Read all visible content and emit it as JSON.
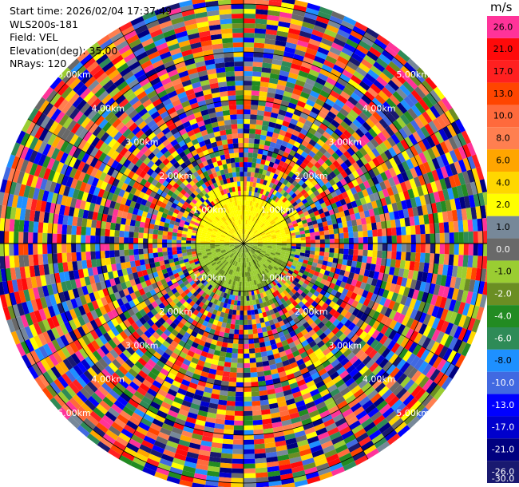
{
  "header": {
    "start_time": "Start time: 2026/02/04 17:37:49",
    "station": "WLS200s-181",
    "field": "Field: VEL",
    "elevation": "Elevation(deg): 35.00",
    "nrays": "NRays: 120"
  },
  "colorbar": {
    "unit": "m/s",
    "bins": [
      {
        "label": "26.0",
        "color": "#ff3399"
      },
      {
        "label": "21.0",
        "color": "#ff0a0a"
      },
      {
        "label": "17.0",
        "color": "#ff2020"
      },
      {
        "label": "13.0",
        "color": "#ff4500"
      },
      {
        "label": "10.0",
        "color": "#ff6a3c"
      },
      {
        "label": "8.0",
        "color": "#ff7f50"
      },
      {
        "label": "6.0",
        "color": "#ffa500"
      },
      {
        "label": "4.0",
        "color": "#ffd700"
      },
      {
        "label": "2.0",
        "color": "#ffff00"
      },
      {
        "label": "1.0",
        "color": "#778899"
      },
      {
        "label": "0.0",
        "color": "#696969"
      },
      {
        "label": "-1.0",
        "color": "#9acd32"
      },
      {
        "label": "-2.0",
        "color": "#6b8e23"
      },
      {
        "label": "-4.0",
        "color": "#228b22"
      },
      {
        "label": "-6.0",
        "color": "#2e8b57"
      },
      {
        "label": "-8.0",
        "color": "#1e90ff"
      },
      {
        "label": "-10.0",
        "color": "#4169e1"
      },
      {
        "label": "-13.0",
        "color": "#0000ff"
      },
      {
        "label": "-17.0",
        "color": "#0000cd"
      },
      {
        "label": "-21.0",
        "color": "#000080"
      },
      {
        "label": "-26.0",
        "color": "#191970"
      }
    ],
    "bottom_label": "-30.0"
  },
  "chart_data": {
    "type": "heatmap",
    "projection": "polar PPI",
    "field": "VEL",
    "units": "m/s",
    "nrays": 120,
    "range_rings_km": [
      1,
      2,
      3,
      4,
      5
    ],
    "ring_labels": [
      "1.00km",
      "2.00km",
      "3.00km",
      "4.00km",
      "5.00km"
    ],
    "max_range_km": 5.2,
    "value_scale": [
      -30,
      26
    ],
    "grid": true
  }
}
